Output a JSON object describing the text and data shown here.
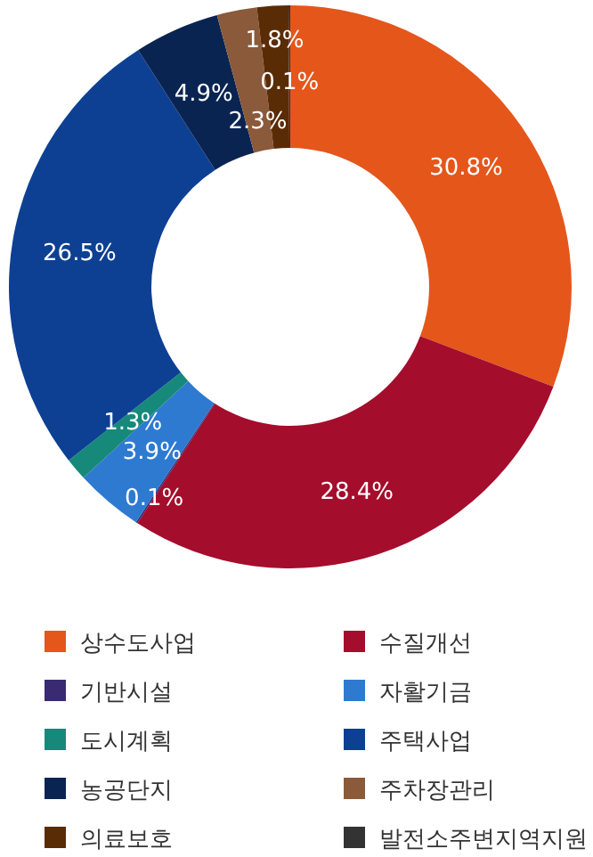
{
  "chart_data": {
    "type": "donut",
    "categories": [
      "상수도사업",
      "수질개선",
      "기반시설",
      "자활기금",
      "도시계획",
      "주택사업",
      "농공단지",
      "주차장관리",
      "의료보호",
      "발전소주변지역지원"
    ],
    "values": [
      30.8,
      28.4,
      0.1,
      3.9,
      1.3,
      26.5,
      4.9,
      2.3,
      1.8,
      0.1
    ],
    "colors": [
      "#e5561b",
      "#a50d2c",
      "#3a2a70",
      "#2e7ad1",
      "#17897a",
      "#0d4093",
      "#0a2452",
      "#8a5a3a",
      "#5a2c05",
      "#333333"
    ],
    "value_labels": [
      "30.8%",
      "28.4%",
      "0.1%",
      "3.9%",
      "1.3%",
      "26.5%",
      "4.9%",
      "2.3%",
      "1.8%",
      "0.1%"
    ],
    "legend": "bottom"
  }
}
